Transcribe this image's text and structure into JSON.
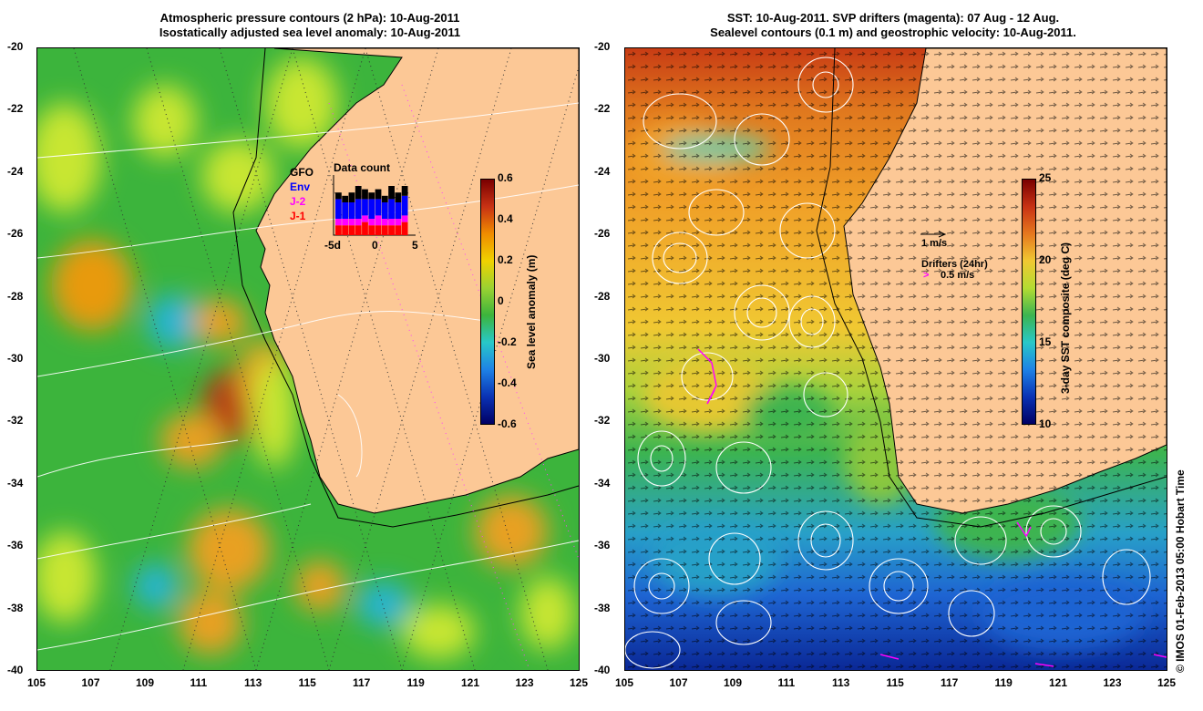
{
  "left_panel": {
    "title_line1": "Atmospheric pressure contours (2 hPa): 10-Aug-2011",
    "title_line2": "Isostatically adjusted sea level anomaly: 10-Aug-2011",
    "colorbar": {
      "label": "Sea level anomaly (m)",
      "ticks": [
        "0.6",
        "0.4",
        "0.2",
        "0",
        "-0.2",
        "-0.4",
        "-0.6"
      ],
      "min": -0.6,
      "max": 0.6
    },
    "inset": {
      "title": "Data count",
      "legend": [
        {
          "label": "GFO",
          "color": "#000000"
        },
        {
          "label": "Env",
          "color": "#0000ff"
        },
        {
          "label": "J-2",
          "color": "#ff00ff"
        },
        {
          "label": "J-1",
          "color": "#ff0000"
        }
      ],
      "x_ticks": [
        "-5d",
        "0",
        "5"
      ],
      "bars": [
        {
          "j1": 3,
          "j2": 2,
          "env": 6,
          "gfo": 2
        },
        {
          "j1": 3,
          "j2": 2,
          "env": 5,
          "gfo": 2
        },
        {
          "j1": 3,
          "j2": 2,
          "env": 5,
          "gfo": 3
        },
        {
          "j1": 3,
          "j2": 2,
          "env": 6,
          "gfo": 4
        },
        {
          "j1": 4,
          "j2": 2,
          "env": 5,
          "gfo": 3
        },
        {
          "j1": 3,
          "j2": 2,
          "env": 6,
          "gfo": 2
        },
        {
          "j1": 3,
          "j2": 3,
          "env": 5,
          "gfo": 3
        },
        {
          "j1": 3,
          "j2": 2,
          "env": 5,
          "gfo": 2
        },
        {
          "j1": 3,
          "j2": 2,
          "env": 6,
          "gfo": 4
        },
        {
          "j1": 3,
          "j2": 2,
          "env": 5,
          "gfo": 3
        },
        {
          "j1": 4,
          "j2": 2,
          "env": 6,
          "gfo": 3
        }
      ]
    }
  },
  "right_panel": {
    "title_line1": "SST: 10-Aug-2011. SVP drifters (magenta): 07 Aug - 12 Aug.",
    "title_line2": "Sealevel contours (0.1 m) and geostrophic velocity: 10-Aug-2011.",
    "colorbar": {
      "label": "3-day SST composite (deg C)",
      "ticks": [
        "25",
        "20",
        "15",
        "10"
      ],
      "min": 10,
      "max": 25
    },
    "velocity_legend": "1 m/s",
    "drifter_legend_title": "Drifters (24hr)",
    "drifter_legend_value": "0.5 m/s"
  },
  "axes": {
    "lat_ticks": [
      "-20",
      "-22",
      "-24",
      "-26",
      "-28",
      "-30",
      "-32",
      "-34",
      "-36",
      "-38",
      "-40"
    ],
    "lon_ticks": [
      "105",
      "107",
      "109",
      "111",
      "113",
      "115",
      "117",
      "119",
      "121",
      "123",
      "125"
    ]
  },
  "credit": "© IMOS 01-Feb-2013 05:00 Hobart Time",
  "colors": {
    "land": "#fcc896",
    "sla_green": "#3cb43c",
    "sla_yellow": "#c8e632",
    "sla_orange": "#f0a000",
    "sla_red": "#b43c14",
    "sla_cyan": "#28b4d2",
    "sst_warm": "#d25a1e",
    "sst_mid": "#f0b428",
    "sst_green": "#3cb450",
    "sst_cold": "#1450b4"
  }
}
